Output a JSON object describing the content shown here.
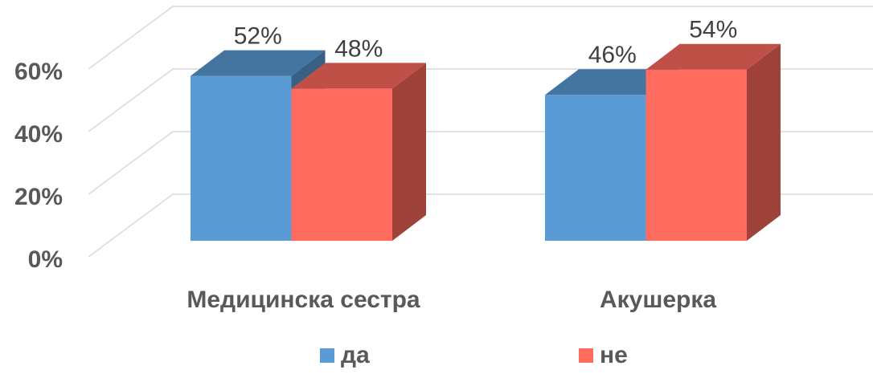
{
  "chart_data": {
    "type": "bar",
    "categories": [
      "Медицинска сестра",
      "Акушерка"
    ],
    "series": [
      {
        "name": "да",
        "color": "#5b9bd5",
        "values": [
          52,
          46
        ],
        "value_labels": [
          "52%",
          "46%"
        ]
      },
      {
        "name": "не",
        "color": "#ff6b5e",
        "values": [
          48,
          54
        ],
        "value_labels": [
          "48%",
          "54%"
        ]
      }
    ],
    "ylim": [
      0,
      60
    ],
    "yticks": [
      {
        "value": 0,
        "label": "0%"
      },
      {
        "value": 20,
        "label": "20%"
      },
      {
        "value": 40,
        "label": "40%"
      },
      {
        "value": 60,
        "label": "60%"
      }
    ],
    "grid": true,
    "legend": "bottom"
  }
}
